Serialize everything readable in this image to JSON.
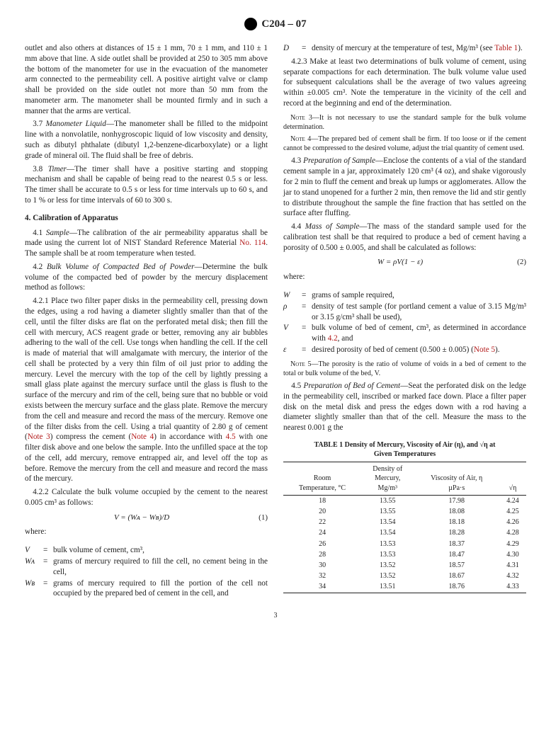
{
  "header_label": "C204 – 07",
  "col_para_37a": "outlet and also others at distances of 15 ± 1 mm, 70 ± 1 mm, and 110 ± 1 mm above that line. A side outlet shall be provided at 250 to 305 mm above the bottom of the manometer for use in the evacuation of the manometer arm connected to the permeability cell. A positive airtight valve or clamp shall be provided on the side outlet not more than 50 mm from the manometer arm. The manometer shall be mounted firmly and in such a manner that the arms are vertical.",
  "s37_num": "3.7 ",
  "s37_title": "Manometer Liquid",
  "s37_body": "—The manometer shall be filled to the midpoint line with a nonvolatile, nonhygroscopic liquid of low viscosity and density, such as dibutyl phthalate (dibutyl 1,2-benzene-dicarboxylate) or a light grade of mineral oil. The fluid shall be free of debris.",
  "s38_num": "3.8 ",
  "s38_title": "Timer",
  "s38_body": "—The timer shall have a positive starting and stopping mechanism and shall be capable of being read to the nearest 0.5 s or less. The timer shall be accurate to 0.5 s or less for time intervals up to 60 s, and to 1 % or less for time intervals of 60 to 300 s.",
  "sec4_head": "4. Calibration of Apparatus",
  "s41_num": "4.1 ",
  "s41_title": "Sample",
  "s41_body_a": "—The calibration of the air permeability apparatus shall be made using the current lot of NIST Standard Reference Material ",
  "s41_link": "No. 114",
  "s41_body_b": ". The sample shall be at room temperature when tested.",
  "s42_num": "4.2 ",
  "s42_title": "Bulk Volume of Compacted Bed of Powder",
  "s42_body": "—Determine the bulk volume of the compacted bed of powder by the mercury displacement method as follows:",
  "s421_num": "4.2.1 ",
  "s421_body_a": "Place two filter paper disks in the permeability cell, pressing down the edges, using a rod having a diameter slightly smaller than that of the cell, until the filter disks are flat on the perforated metal disk; then fill the cell with mercury, ACS reagent grade or better, removing any air bubbles adhering to the wall of the cell. Use tongs when handling the cell. If the cell is made of material that will amalgamate with mercury, the interior of the cell shall be protected by a very thin film of oil just prior to adding the mercury. Level the mercury with the top of the cell by lightly pressing a small glass plate against the mercury surface until the glass is flush to the surface of the mercury and rim of the cell, being sure that no bubble or void exists between the mercury surface and the glass plate. Remove the mercury from the cell and measure and record the mass of the mercury. Remove one of the filter disks from the cell. Using a trial quantity of 2.80 g of cement (",
  "s421_note3": "Note 3",
  "s421_body_b": ") compress the cement (",
  "s421_note4": "Note 4",
  "s421_body_c": ") in accordance with ",
  "s421_45": "4.5",
  "s421_body_d": " with one filter disk above and one below the sample. Into the unfilled space at the top of the cell, add mercury, remove entrapped air, and level off the top as before. Remove the mercury from the cell and measure and record the mass of the mercury.",
  "s422_num": "4.2.2 ",
  "s422_body": "Calculate the bulk volume occupied by the cement to the nearest 0.005 cm³ as follows:",
  "eq1": "V = (Wᴀ − Wʙ)/D",
  "eq1num": "(1)",
  "where": "where:",
  "wv_s": "V",
  "wv_d": "bulk volume of cement, cm³,",
  "wwa_s": "Wᴀ",
  "wwa_d": "grams of mercury required to fill the cell, no cement being in the cell,",
  "wwb_s": "Wʙ",
  "wwb_d": "grams of mercury required to fill the portion of the cell not occupied by the prepared bed of cement in the cell, and",
  "wd_s": "D",
  "wd_d_a": "density of mercury at the temperature of test, Mg/m³ (see ",
  "wd_link": "Table 1",
  "wd_d_b": ").",
  "s423_num": "4.2.3 ",
  "s423_body": "Make at least two determinations of bulk volume of cement, using separate compactions for each determination. The bulk volume value used for subsequent calculations shall be the average of two values agreeing within ±0.005 cm³. Note the temperature in the vicinity of the cell and record at the beginning and end of the determination.",
  "note3_label": "Note 3—",
  "note3_body": "It is not necessary to use the standard sample for the bulk volume determination.",
  "note4_label": "Note 4—",
  "note4_body": "The prepared bed of cement shall be firm. If too loose or if the cement cannot be compressed to the desired volume, adjust the trial quantity of cement used.",
  "s43_num": "4.3 ",
  "s43_title": "Preparation of Sample",
  "s43_body": "—Enclose the contents of a vial of the standard cement sample in a jar, approximately 120 cm³ (4 oz), and shake vigorously for 2 min to fluff the cement and break up lumps or agglomerates. Allow the jar to stand unopened for a further 2 min, then remove the lid and stir gently to distribute throughout the sample the fine fraction that has settled on the surface after fluffing.",
  "s44_num": "4.4 ",
  "s44_title": "Mass of Sample",
  "s44_body": "—The mass of the standard sample used for the calibration test shall be that required to produce a bed of cement having a porosity of 0.500 ± 0.005, and shall be calculated as follows:",
  "eq2": "W = ρV(1 − ε)",
  "eq2num": "(2)",
  "ww_s": "W",
  "ww_d": "grams of sample required,",
  "wrho_s": "ρ",
  "wrho_d": "density of test sample (for portland cement a value of 3.15 Mg/m³ or 3.15 g/cm³ shall be used),",
  "wv2_s": "V",
  "wv2_da": "bulk volume of bed of cement, cm³, as determined in accordance with ",
  "wv2_link": "4.2",
  "wv2_db": ", and",
  "weps_s": "ε",
  "weps_da": "desired porosity of bed of cement (0.500 ± 0.005) (",
  "weps_link": "Note 5",
  "weps_db": ").",
  "note5_label": "Note 5—",
  "note5_body": "The porosity is the ratio of volume of voids in a bed of cement to the total or bulk volume of the bed, V.",
  "s45_num": "4.5 ",
  "s45_title": "Preparation of Bed of Cement",
  "s45_body": "—Seat the perforated disk on the ledge in the permeability cell, inscribed or marked face down. Place a filter paper disk on the metal disk and press the edges down with a rod having a diameter slightly smaller than that of the cell. Measure the mass to the nearest 0.001 g the",
  "tbl_title_a": "TABLE 1  Density of Mercury, Viscosity of Air (η), and √η at",
  "tbl_title_b": "Given Temperatures",
  "th_temp_a": "Room",
  "th_temp_b": "Temperature, °C",
  "th_dens_a": "Density of",
  "th_dens_b": "Mercury,",
  "th_dens_c": "Mg/m³",
  "th_visc_a": "Viscosity of Air, η",
  "th_visc_b": "µPa·s",
  "th_sqrt": "√η",
  "tr": [
    [
      "18",
      "13.55",
      "17.98",
      "4.24"
    ],
    [
      "20",
      "13.55",
      "18.08",
      "4.25"
    ],
    [
      "22",
      "13.54",
      "18.18",
      "4.26"
    ],
    [
      "24",
      "13.54",
      "18.28",
      "4.28"
    ],
    [
      "26",
      "13.53",
      "18.37",
      "4.29"
    ],
    [
      "28",
      "13.53",
      "18.47",
      "4.30"
    ],
    [
      "30",
      "13.52",
      "18.57",
      "4.31"
    ],
    [
      "32",
      "13.52",
      "18.67",
      "4.32"
    ],
    [
      "34",
      "13.51",
      "18.76",
      "4.33"
    ]
  ],
  "page_number": "3"
}
